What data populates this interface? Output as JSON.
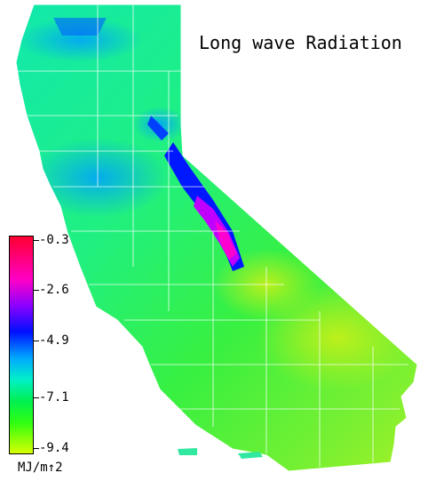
{
  "title": "Long wave Radiation",
  "legend": {
    "ticks": [
      "-0.3",
      "-2.6",
      "-4.9",
      "-7.1",
      "-9.4"
    ],
    "unit": "MJ/m↑2"
  },
  "colors": {
    "high": "#ff0030",
    "mid_high": "#0010ff",
    "mid": "#00a8ff",
    "mid_low": "#00f050",
    "low": "#d8ff00"
  }
}
